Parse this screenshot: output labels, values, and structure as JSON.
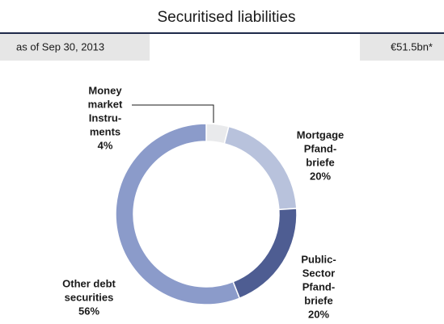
{
  "chart_data": {
    "type": "donut",
    "title": "Securitised liabilities",
    "subtitle": "as of Sep 30, 2013",
    "total": "€51.5bn*",
    "categories": [
      [
        "Money",
        "market",
        "Instru-",
        "ments"
      ],
      [
        "Mortgage",
        "Pfand-",
        "briefe"
      ],
      [
        "Public-",
        "Sector",
        "Pfand-",
        "briefe"
      ],
      [
        "Other debt",
        "securities"
      ]
    ],
    "values": [
      4,
      20,
      20,
      56
    ],
    "value_labels": [
      "4%",
      "20%",
      "20%",
      "56%"
    ],
    "colors": [
      "#e9eaec",
      "#b8c2dc",
      "#4e5d92",
      "#8b9bca"
    ]
  }
}
